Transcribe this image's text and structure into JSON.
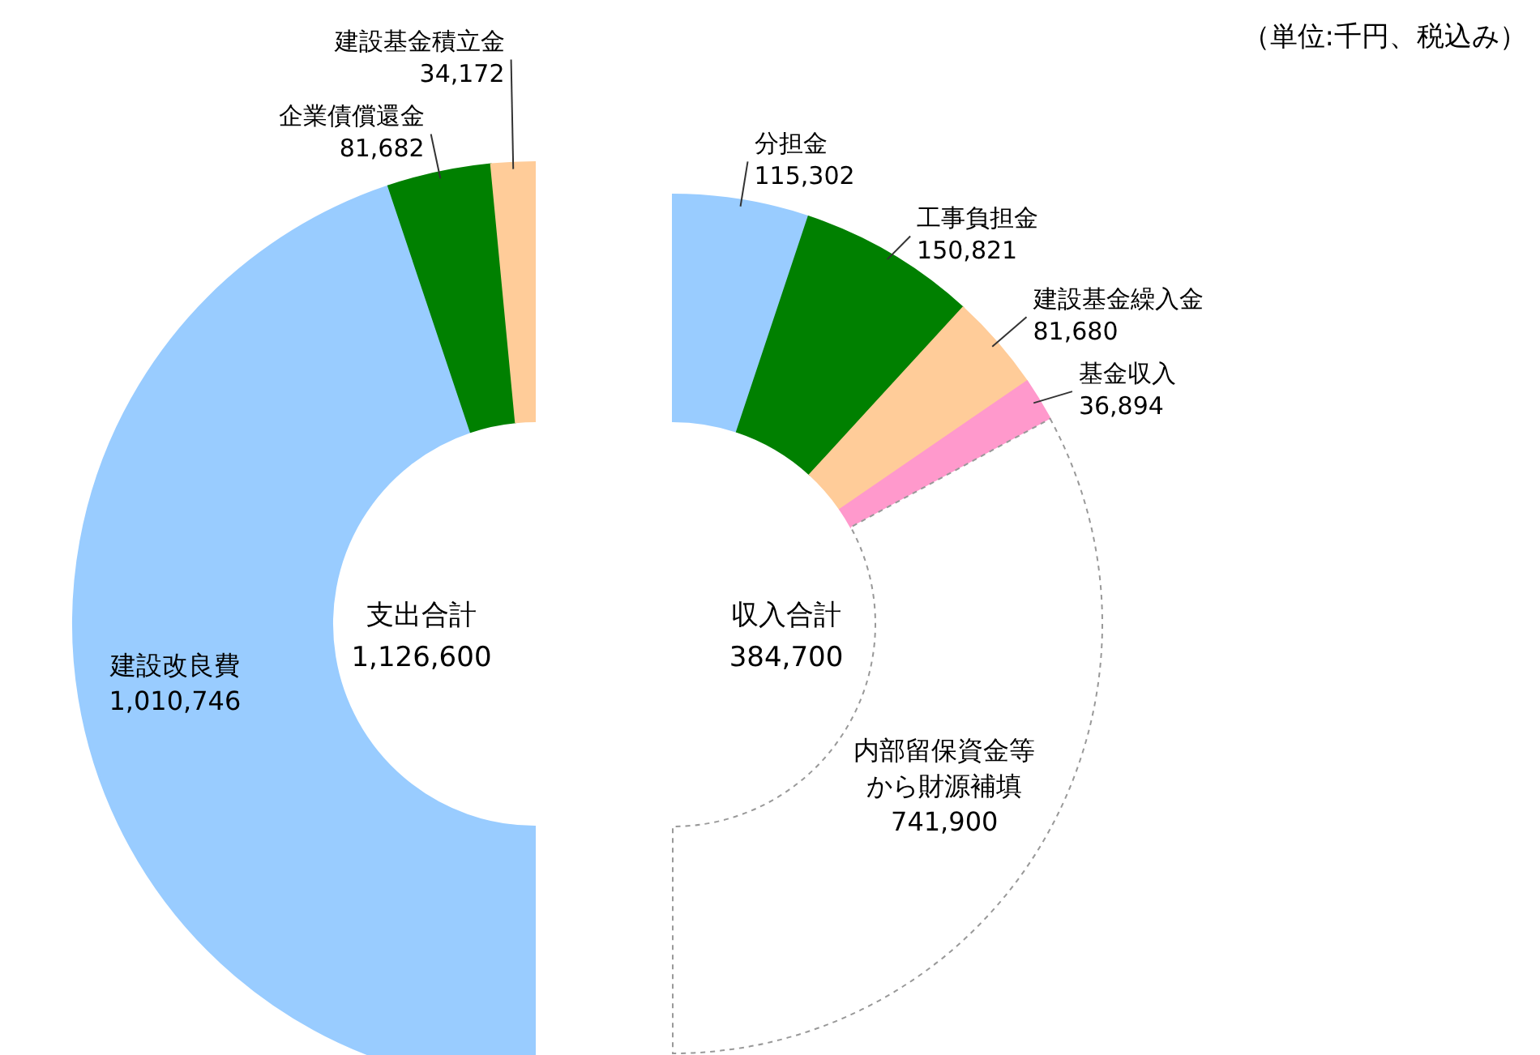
{
  "chart_data": [
    {
      "type": "donut",
      "categories": [
        "建設改良費",
        "企業債償還金",
        "建設基金積立金"
      ],
      "values": [
        1010746,
        81682,
        34172
      ],
      "colors": [
        "#99ccff",
        "#008000",
        "#ffcc99"
      ],
      "value_labels": [
        "1,010,746",
        "81,682",
        "34,172"
      ],
      "annotations": [
        "支出合計",
        "1,126,600"
      ]
    },
    {
      "type": "donut",
      "categories": [
        "分担金",
        "工事負担金",
        "建設基金繰入金",
        "基金収入",
        "内部留保資金等から財源補填"
      ],
      "values": [
        115302,
        150821,
        81680,
        36894,
        741900
      ],
      "colors": [
        "#99ccff",
        "#008000",
        "#ffcc99",
        "#ff99cc",
        "#ffffff"
      ],
      "value_labels": [
        "115,302",
        "150,821",
        "81,680",
        "36,894",
        "741,900"
      ],
      "annotations": [
        "収入合計",
        "384,700",
        "（単位:千円、税込み）"
      ]
    }
  ]
}
